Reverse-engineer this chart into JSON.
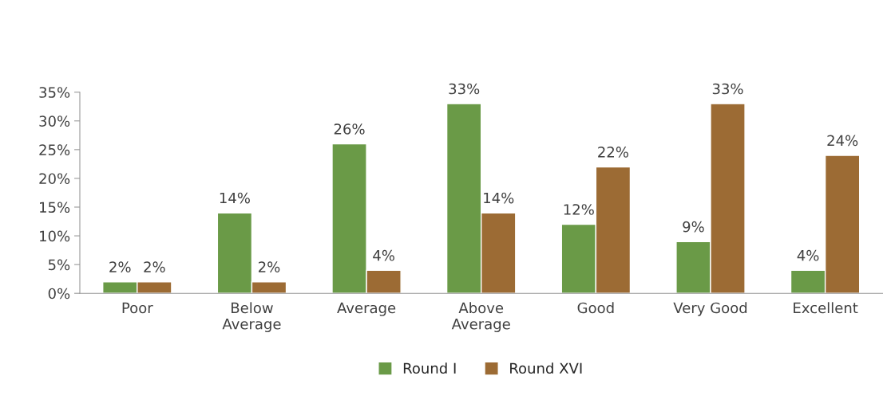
{
  "chart_data": {
    "type": "bar",
    "categories": [
      "Poor",
      "Below\nAverage",
      "Average",
      "Above\nAverage",
      "Good",
      "Very Good",
      "Excellent"
    ],
    "series": [
      {
        "name": "Round I",
        "color": "#6a9a47",
        "values": [
          2,
          14,
          26,
          33,
          12,
          9,
          4
        ],
        "value_labels": [
          "2%",
          "14%",
          "26%",
          "33%",
          "12%",
          "9%",
          "4%"
        ]
      },
      {
        "name": "Round XVI",
        "color": "#9c6b34",
        "values": [
          2,
          2,
          4,
          14,
          22,
          33,
          24
        ],
        "value_labels": [
          "2%",
          "2%",
          "4%",
          "14%",
          "22%",
          "33%",
          "24%"
        ]
      }
    ],
    "ylim": [
      0,
      35
    ],
    "yticks": [
      {
        "value": 0,
        "label": "0%"
      },
      {
        "value": 5,
        "label": "5%"
      },
      {
        "value": 10,
        "label": "10%"
      },
      {
        "value": 15,
        "label": "15%"
      },
      {
        "value": 20,
        "label": "20%"
      },
      {
        "value": 25,
        "label": "25%"
      },
      {
        "value": 30,
        "label": "30%"
      },
      {
        "value": 35,
        "label": "35%"
      }
    ],
    "grid": false,
    "legend": "bottom"
  }
}
